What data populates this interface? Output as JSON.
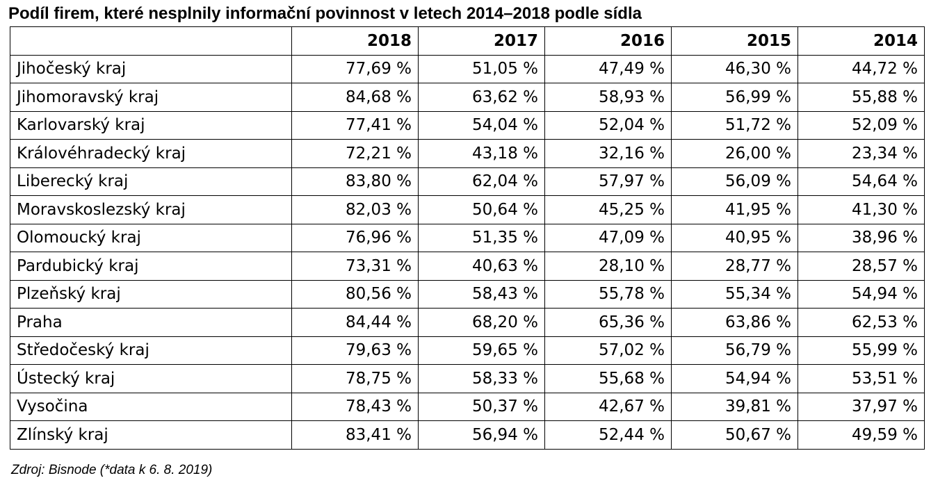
{
  "chart_data": {
    "type": "table",
    "title": "Podíl firem, které nesplnily informační povinnost v letech 2014–2018 podle sídla",
    "columns": [
      "2018",
      "2017",
      "2016",
      "2015",
      "2014"
    ],
    "rows": [
      {
        "label": "Jihočeský kraj",
        "values": [
          "77,69 %",
          "51,05 %",
          "47,49 %",
          "46,30 %",
          "44,72 %"
        ]
      },
      {
        "label": "Jihomoravský kraj",
        "values": [
          "84,68 %",
          "63,62 %",
          "58,93 %",
          "56,99 %",
          "55,88 %"
        ]
      },
      {
        "label": "Karlovarský kraj",
        "values": [
          "77,41 %",
          "54,04 %",
          "52,04 %",
          "51,72 %",
          "52,09 %"
        ]
      },
      {
        "label": "Královéhradecký kraj",
        "values": [
          "72,21 %",
          "43,18 %",
          "32,16 %",
          "26,00 %",
          "23,34 %"
        ]
      },
      {
        "label": "Liberecký kraj",
        "values": [
          "83,80 %",
          "62,04 %",
          "57,97 %",
          "56,09 %",
          "54,64 %"
        ]
      },
      {
        "label": "Moravskoslezský kraj",
        "values": [
          "82,03 %",
          "50,64 %",
          "45,25 %",
          "41,95 %",
          "41,30 %"
        ]
      },
      {
        "label": "Olomoucký kraj",
        "values": [
          "76,96 %",
          "51,35 %",
          "47,09 %",
          "40,95 %",
          "38,96 %"
        ]
      },
      {
        "label": "Pardubický kraj",
        "values": [
          "73,31 %",
          "40,63 %",
          "28,10 %",
          "28,77 %",
          "28,57 %"
        ]
      },
      {
        "label": "Plzeňský kraj",
        "values": [
          "80,56 %",
          "58,43 %",
          "55,78 %",
          "55,34 %",
          "54,94 %"
        ]
      },
      {
        "label": "Praha",
        "values": [
          "84,44 %",
          "68,20 %",
          "65,36 %",
          "63,86 %",
          "62,53 %"
        ]
      },
      {
        "label": "Středočeský kraj",
        "values": [
          "79,63 %",
          "59,65 %",
          "57,02 %",
          "56,79 %",
          "55,99 %"
        ]
      },
      {
        "label": "Ústecký kraj",
        "values": [
          "78,75 %",
          "58,33 %",
          "55,68 %",
          "54,94 %",
          "53,51 %"
        ]
      },
      {
        "label": "Vysočina",
        "values": [
          "78,43 %",
          "50,37 %",
          "42,67 %",
          "39,81 %",
          "37,97 %"
        ]
      },
      {
        "label": "Zlínský kraj",
        "values": [
          "83,41 %",
          "56,94 %",
          "52,44 %",
          "50,67 %",
          "49,59 %"
        ]
      }
    ],
    "source": "Zdroj: Bisnode (*data k 6. 8. 2019)"
  }
}
